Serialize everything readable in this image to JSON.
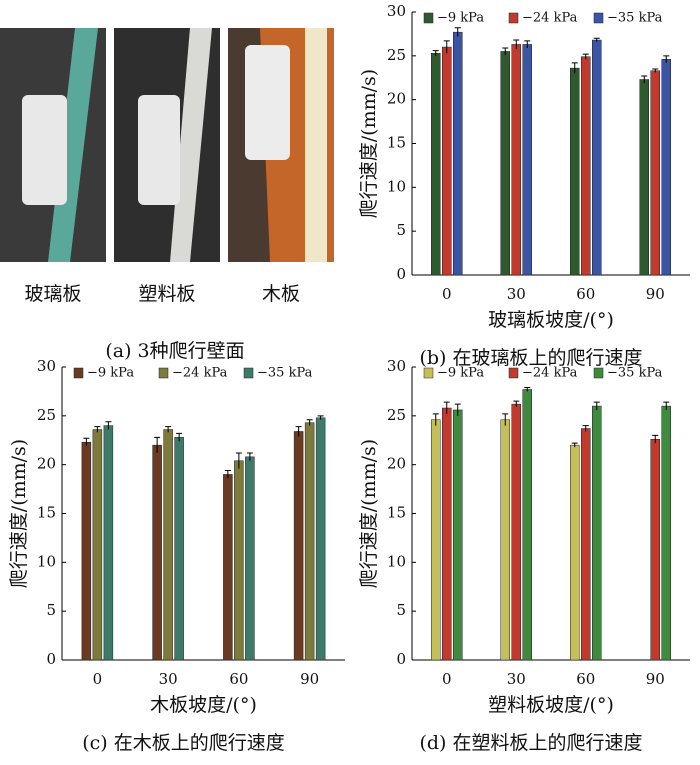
{
  "photos": {
    "labels": [
      "玻璃板",
      "塑料板",
      "木板"
    ],
    "caption": "(a) 3种爬行壁面"
  },
  "chart_data": [
    {
      "type": "bar",
      "caption": "(b) 在玻璃板上的爬行速度",
      "xlabel": "玻璃板坡度/(°)",
      "ylabel": "爬行速度/(mm/s)",
      "categories": [
        "0",
        "30",
        "60",
        "90"
      ],
      "ylim": [
        0,
        30
      ],
      "yticks": [
        0,
        5,
        10,
        15,
        20,
        25,
        30
      ],
      "series": [
        {
          "name": "−9 kPa",
          "color": "#2f5a2f",
          "values": [
            25.3,
            25.5,
            23.6,
            22.3
          ],
          "errors": [
            0.3,
            0.4,
            0.6,
            0.4
          ]
        },
        {
          "name": "−24 kPa",
          "color": "#c23a2e",
          "values": [
            26.0,
            26.3,
            24.9,
            23.3
          ],
          "errors": [
            0.7,
            0.5,
            0.3,
            0.2
          ]
        },
        {
          "name": "−35 kPa",
          "color": "#3b55a4",
          "values": [
            27.7,
            26.3,
            26.8,
            24.6
          ],
          "errors": [
            0.5,
            0.4,
            0.2,
            0.4
          ]
        }
      ]
    },
    {
      "type": "bar",
      "caption": "(c) 在木板上的爬行速度",
      "xlabel": "木板坡度/(°)",
      "ylabel": "爬行速度/(mm/s)",
      "categories": [
        "0",
        "30",
        "60",
        "90"
      ],
      "ylim": [
        0,
        30
      ],
      "yticks": [
        0,
        5,
        10,
        15,
        20,
        25,
        30
      ],
      "series": [
        {
          "name": "−9 kPa",
          "color": "#6b3a22",
          "values": [
            22.3,
            22.0,
            19.0,
            23.4
          ],
          "errors": [
            0.4,
            0.8,
            0.4,
            0.5
          ]
        },
        {
          "name": "−24 kPa",
          "color": "#7d7a3c",
          "values": [
            23.6,
            23.6,
            20.4,
            24.3
          ],
          "errors": [
            0.3,
            0.3,
            0.8,
            0.3
          ]
        },
        {
          "name": "−35 kPa",
          "color": "#3e7a6a",
          "values": [
            24.0,
            22.8,
            20.8,
            24.8
          ],
          "errors": [
            0.4,
            0.4,
            0.4,
            0.2
          ]
        }
      ]
    },
    {
      "type": "bar",
      "caption": "(d) 在塑料板上的爬行速度",
      "xlabel": "塑料板坡度/(°)",
      "ylabel": "爬行速度/(mm/s)",
      "categories": [
        "0",
        "30",
        "60",
        "90"
      ],
      "ylim": [
        0,
        30
      ],
      "yticks": [
        0,
        5,
        10,
        15,
        20,
        25,
        30
      ],
      "series": [
        {
          "name": "−9 kPa",
          "color": "#c4bf5a",
          "values": [
            24.6,
            24.6,
            22.0,
            null
          ],
          "errors": [
            0.6,
            0.6,
            0.2,
            null
          ]
        },
        {
          "name": "−24 kPa",
          "color": "#c23a2e",
          "values": [
            25.8,
            26.2,
            23.7,
            22.6
          ],
          "errors": [
            0.6,
            0.3,
            0.3,
            0.4
          ]
        },
        {
          "name": "−35 kPa",
          "color": "#3f8a3f",
          "values": [
            25.6,
            27.7,
            26.0,
            26.0
          ],
          "errors": [
            0.6,
            0.2,
            0.4,
            0.4
          ]
        }
      ]
    }
  ]
}
